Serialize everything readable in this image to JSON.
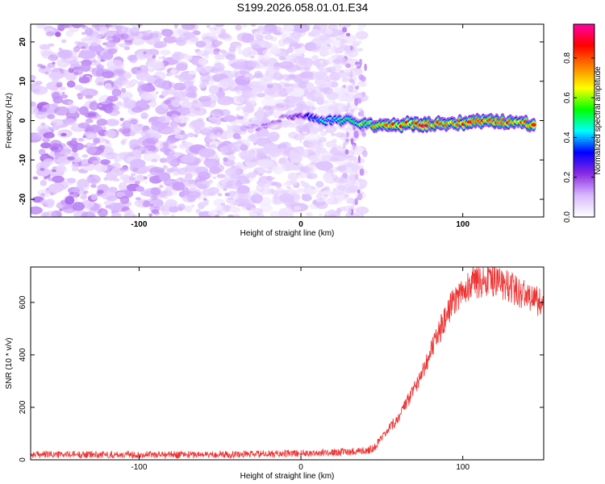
{
  "title": "S199.2026.058.01.01.E34",
  "chart_data": [
    {
      "type": "heatmap",
      "xlabel": "Height of straight line (km)",
      "ylabel": "Frequency (Hz)",
      "xlim": [
        -167,
        150
      ],
      "ylim": [
        -24.5,
        24.5
      ],
      "xticks": [
        -100,
        0,
        100
      ],
      "xtick_labels": [
        "-100",
        "0",
        "100"
      ],
      "yticks": [
        -20,
        -10,
        0,
        10,
        20
      ],
      "ytick_labels": [
        "-20",
        "-10",
        "0",
        "10",
        "20"
      ],
      "colorbar": {
        "label": "Normalized spectral amplitude",
        "range": [
          0,
          0.97
        ],
        "ticks": [
          0.0,
          0.2,
          0.4,
          0.6,
          0.8
        ],
        "tick_labels": [
          "0.0",
          "0.2",
          "0.4",
          "0.6",
          "0.8"
        ],
        "colormap": [
          "#ffffff",
          "#d8b8ff",
          "#8a2be2",
          "#0000ff",
          "#00ffff",
          "#00ff00",
          "#ffff00",
          "#ff8000",
          "#ff0000",
          "#ff00aa"
        ]
      },
      "noise_region_x": [
        -167,
        38
      ],
      "ridge": [
        {
          "x": -35,
          "f": -1.0,
          "amp": 0.12
        },
        {
          "x": -25,
          "f": -2.0,
          "amp": 0.15
        },
        {
          "x": -12,
          "f": 0.5,
          "amp": 0.18
        },
        {
          "x": 0,
          "f": 1.5,
          "amp": 0.25
        },
        {
          "x": 15,
          "f": 0.0,
          "amp": 0.45
        },
        {
          "x": 30,
          "f": 0.0,
          "amp": 0.55
        },
        {
          "x": 45,
          "f": -1.0,
          "amp": 0.7
        },
        {
          "x": 60,
          "f": -1.0,
          "amp": 0.85
        },
        {
          "x": 75,
          "f": -1.0,
          "amp": 0.85
        },
        {
          "x": 90,
          "f": -1.0,
          "amp": 0.8
        },
        {
          "x": 100,
          "f": -0.5,
          "amp": 0.85
        },
        {
          "x": 115,
          "f": 0.0,
          "amp": 0.9
        },
        {
          "x": 130,
          "f": -0.5,
          "amp": 0.85
        },
        {
          "x": 145,
          "f": -1.0,
          "amp": 0.8
        }
      ]
    },
    {
      "type": "line",
      "xlabel": "Height of straight line (km)",
      "ylabel": "SNR (10 * v/v)",
      "xlim": [
        -167,
        150
      ],
      "ylim": [
        0,
        735
      ],
      "xticks": [
        -100,
        0,
        100
      ],
      "xtick_labels": [
        "-100",
        "0",
        "100"
      ],
      "yticks": [
        0,
        200,
        400,
        600
      ],
      "ytick_labels": [
        "0",
        "200",
        "400",
        "600"
      ],
      "series": [
        {
          "name": "SNR",
          "color": "#ee3333",
          "x": [
            -167,
            -140,
            -100,
            -60,
            -20,
            20,
            40,
            45,
            50,
            55,
            60,
            65,
            70,
            75,
            80,
            85,
            90,
            95,
            100,
            105,
            110,
            115,
            120,
            125,
            130,
            135,
            140,
            145,
            150
          ],
          "y": [
            20,
            20,
            20,
            20,
            22,
            28,
            35,
            45,
            80,
            120,
            160,
            210,
            270,
            340,
            410,
            480,
            550,
            610,
            650,
            670,
            680,
            685,
            680,
            670,
            655,
            640,
            625,
            610,
            590
          ],
          "noise_amplitude": 12
        }
      ]
    }
  ]
}
